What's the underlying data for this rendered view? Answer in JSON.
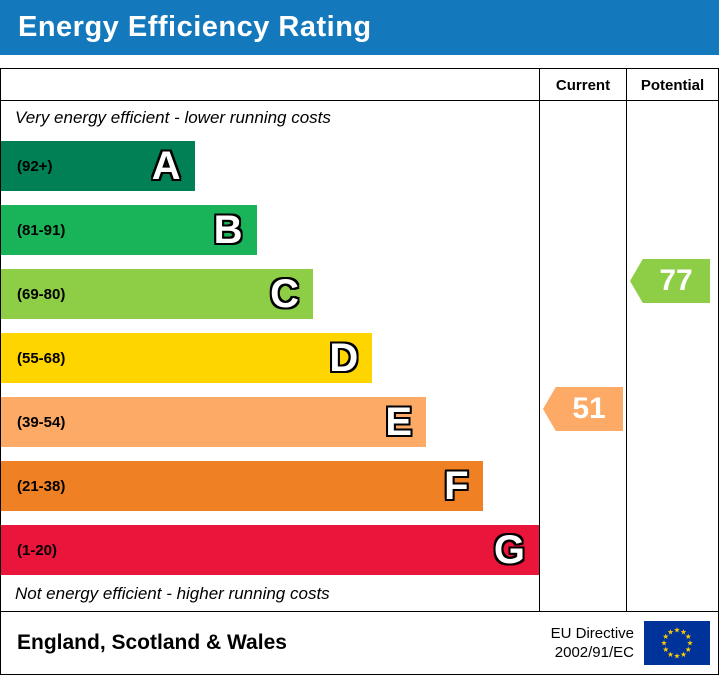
{
  "title": "Energy Efficiency Rating",
  "header_bg": "#1478bd",
  "columns": {
    "current": "Current",
    "potential": "Potential"
  },
  "chart_data": {
    "type": "bar",
    "title": "Energy Efficiency Rating",
    "top_note": "Very energy efficient - lower running costs",
    "bottom_note": "Not energy efficient - higher running costs",
    "bands": [
      {
        "letter": "A",
        "range": "(92+)",
        "color": "#008054",
        "width_pct": 36
      },
      {
        "letter": "B",
        "range": "(81-91)",
        "color": "#19b459",
        "width_pct": 47.5
      },
      {
        "letter": "C",
        "range": "(69-80)",
        "color": "#8dce46",
        "width_pct": 58
      },
      {
        "letter": "D",
        "range": "(55-68)",
        "color": "#ffd500",
        "width_pct": 69
      },
      {
        "letter": "E",
        "range": "(39-54)",
        "color": "#fcaa65",
        "width_pct": 79
      },
      {
        "letter": "F",
        "range": "(21-38)",
        "color": "#ef8023",
        "width_pct": 89.5
      },
      {
        "letter": "G",
        "range": "(1-20)",
        "color": "#e9153b",
        "width_pct": 100
      }
    ],
    "current": {
      "value": 51,
      "band": "E",
      "band_index": 4,
      "color": "#fcaa65"
    },
    "potential": {
      "value": 77,
      "band": "C",
      "band_index": 2,
      "color": "#8dce46"
    }
  },
  "footer": {
    "region": "England, Scotland & Wales",
    "directive_line1": "EU Directive",
    "directive_line2": "2002/91/EC"
  },
  "eu_flag": {
    "bg": "#003399",
    "star_color": "#ffcc00"
  }
}
